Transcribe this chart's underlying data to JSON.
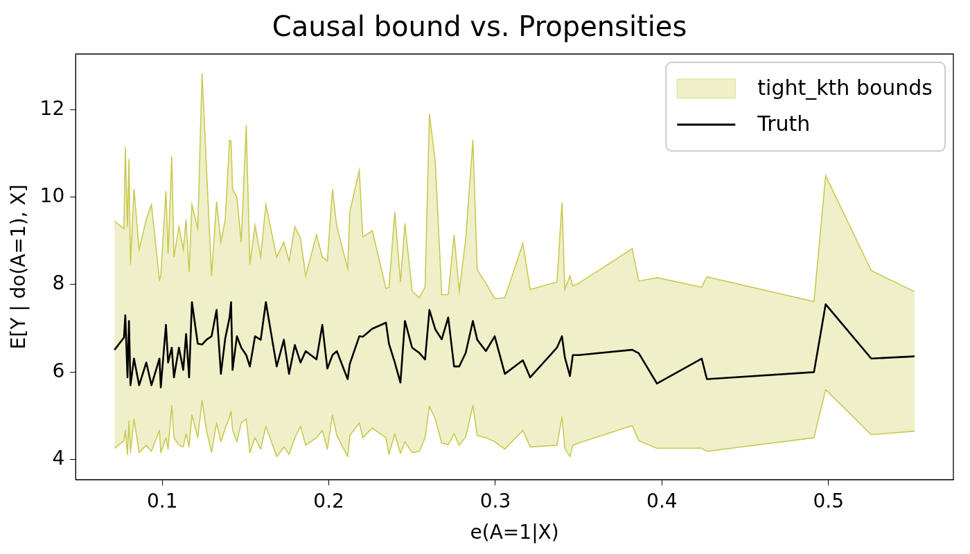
{
  "chart_data": {
    "type": "line",
    "title": "Causal bound vs. Propensities",
    "xlabel": "e(A=1|X)",
    "ylabel": "E[Y | do(A=1), X]",
    "x": [
      0.0713,
      0.077,
      0.0778,
      0.0791,
      0.08,
      0.0809,
      0.083,
      0.0861,
      0.0904,
      0.0935,
      0.0983,
      0.0991,
      0.1022,
      0.1035,
      0.1057,
      0.107,
      0.11,
      0.1126,
      0.1143,
      0.1161,
      0.1178,
      0.1213,
      0.1239,
      0.1265,
      0.1296,
      0.1326,
      0.1352,
      0.1378,
      0.1404,
      0.1413,
      0.1422,
      0.1448,
      0.1474,
      0.1504,
      0.1526,
      0.1557,
      0.1591,
      0.1622,
      0.1687,
      0.173,
      0.1761,
      0.1796,
      0.183,
      0.1861,
      0.1926,
      0.1961,
      0.1991,
      0.2022,
      0.2048,
      0.2113,
      0.2126,
      0.2183,
      0.2204,
      0.2261,
      0.2343,
      0.2361,
      0.2396,
      0.243,
      0.2457,
      0.25,
      0.2543,
      0.2578,
      0.2604,
      0.2639,
      0.2678,
      0.2717,
      0.2752,
      0.2783,
      0.2822,
      0.2865,
      0.2891,
      0.2943,
      0.2996,
      0.3057,
      0.3165,
      0.3209,
      0.337,
      0.34,
      0.3417,
      0.3448,
      0.3465,
      0.35,
      0.3822,
      0.3861,
      0.397,
      0.4239,
      0.427,
      0.4913,
      0.4983,
      0.5257,
      0.5517
    ],
    "series": [
      {
        "type": "line",
        "color": "#c9c94f",
        "values": [
          4.26,
          4.43,
          4.67,
          4.12,
          4.88,
          4.16,
          4.93,
          4.16,
          4.33,
          4.19,
          4.67,
          4.16,
          4.5,
          4.24,
          5.24,
          4.5,
          4.33,
          4.29,
          4.59,
          4.29,
          5.02,
          4.5,
          5.36,
          4.67,
          4.16,
          4.84,
          4.41,
          4.71,
          4.98,
          5.1,
          4.67,
          4.41,
          4.84,
          4.93,
          4.16,
          4.5,
          4.24,
          4.76,
          4.07,
          4.29,
          4.12,
          4.5,
          4.76,
          4.33,
          4.5,
          4.67,
          4.24,
          5.02,
          4.55,
          4.07,
          4.55,
          4.84,
          4.5,
          4.72,
          4.5,
          4.12,
          4.59,
          4.14,
          4.41,
          4.16,
          4.19,
          4.5,
          5.22,
          4.93,
          4.38,
          4.34,
          4.59,
          4.33,
          4.52,
          5.24,
          4.55,
          4.5,
          4.41,
          4.24,
          4.67,
          4.29,
          4.33,
          4.98,
          4.26,
          4.07,
          4.33,
          4.38,
          4.78,
          4.43,
          4.26,
          4.26,
          4.19,
          4.5,
          5.6,
          4.57,
          4.65
        ]
      },
      {
        "name": "tight_kth bounds",
        "type": "area",
        "color": "#c9c94f",
        "values": [
          9.45,
          9.28,
          11.14,
          9.32,
          10.87,
          8.46,
          10.18,
          8.8,
          9.49,
          9.83,
          8.11,
          8.2,
          10.14,
          8.71,
          10.93,
          8.63,
          9.32,
          8.8,
          9.49,
          8.28,
          9.83,
          9.28,
          12.83,
          10.69,
          8.2,
          9.9,
          8.97,
          9.49,
          11.3,
          11.28,
          10.18,
          10.0,
          8.97,
          11.64,
          8.46,
          9.35,
          8.63,
          9.83,
          8.63,
          8.97,
          8.54,
          9.32,
          9.06,
          8.2,
          9.14,
          8.63,
          8.54,
          10.18,
          9.32,
          8.37,
          9.66,
          10.61,
          9.09,
          9.23,
          7.91,
          7.94,
          9.66,
          8.06,
          9.4,
          7.85,
          7.7,
          7.94,
          11.9,
          10.81,
          7.77,
          7.77,
          9.14,
          7.85,
          9.04,
          11.31,
          8.34,
          8.03,
          7.68,
          7.7,
          8.94,
          7.89,
          8.06,
          9.88,
          7.89,
          8.2,
          7.97,
          8.03,
          8.82,
          8.08,
          8.16,
          7.94,
          8.18,
          7.61,
          10.49,
          8.32,
          7.84
        ]
      },
      {
        "name": "Truth",
        "type": "line",
        "color": "#000000",
        "values": [
          6.51,
          6.79,
          7.3,
          5.88,
          7.17,
          5.7,
          6.31,
          5.7,
          6.22,
          5.7,
          6.31,
          5.65,
          7.08,
          6.22,
          6.56,
          5.88,
          6.56,
          6.05,
          6.87,
          5.88,
          7.6,
          6.65,
          6.63,
          6.74,
          6.82,
          7.42,
          5.96,
          6.77,
          7.25,
          7.6,
          6.05,
          6.82,
          6.56,
          6.39,
          6.13,
          6.82,
          6.74,
          7.6,
          6.13,
          6.74,
          5.96,
          6.62,
          6.22,
          6.48,
          6.29,
          7.08,
          6.08,
          6.39,
          6.48,
          5.84,
          6.19,
          6.82,
          6.81,
          6.99,
          7.13,
          6.65,
          6.22,
          5.76,
          7.17,
          6.56,
          6.44,
          6.29,
          7.42,
          6.98,
          6.75,
          7.25,
          6.13,
          6.13,
          6.44,
          7.17,
          6.74,
          6.48,
          6.82,
          5.96,
          6.27,
          5.88,
          6.56,
          6.82,
          6.34,
          5.91,
          6.39,
          6.39,
          6.51,
          6.43,
          5.74,
          6.31,
          5.84,
          6.0,
          7.55,
          6.31,
          6.36
        ]
      }
    ],
    "xlim": [
      0.048,
      0.575
    ],
    "xticks": [
      0.1,
      0.2,
      0.3,
      0.4,
      0.5
    ],
    "ylim": [
      3.54,
      13.27
    ],
    "yticks": [
      4,
      6,
      8,
      10,
      12
    ],
    "legend": "top right",
    "marker": "none"
  }
}
